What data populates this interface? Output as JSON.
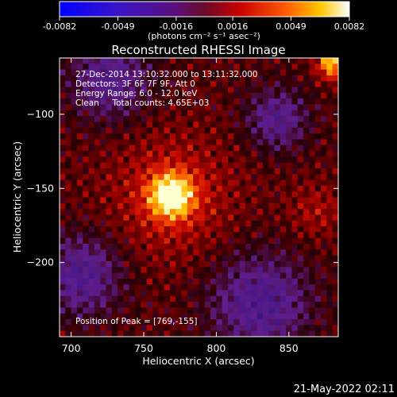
{
  "colorbar": {
    "tick_labels": [
      "-0.0082",
      "-0.0049",
      "-0.0016",
      "0.0016",
      "0.0049",
      "0.0082"
    ],
    "unit_label": "(photons cm⁻² s⁻¹ asec⁻²)",
    "range": [
      -0.0082,
      0.0082
    ]
  },
  "chart_data": {
    "type": "heatmap",
    "title": "Reconstructed RHESSI Image",
    "xlabel": "Heliocentric X (arcsec)",
    "ylabel": "Heliocentric Y (arcsec)",
    "xlim": [
      692,
      884
    ],
    "ylim": [
      -250,
      -62
    ],
    "x_ticks": [
      700,
      750,
      800,
      850
    ],
    "y_ticks": [
      -100,
      -150,
      -200
    ],
    "x_tick_labels": [
      "700",
      "750",
      "800",
      "850"
    ],
    "y_tick_labels": [
      "−100",
      "−150",
      "−200"
    ],
    "peak": {
      "x": 769,
      "y": -155
    },
    "colormap": "RHESSI heat (blue-purple-red-orange-yellow-white)",
    "info_lines": [
      "27-Dec-2014 13:10:32.000 to 13:11:32.000",
      "Detectors: 3F 6F 7F 9F, Att 0",
      "Energy Range: 6.0 - 12.0 keV",
      "Clean     Total counts: 4.65E+03"
    ],
    "peak_label": "Position of Peak = [769,-155]"
  },
  "footer": {
    "timestamp": "21-May-2022 02:11"
  }
}
